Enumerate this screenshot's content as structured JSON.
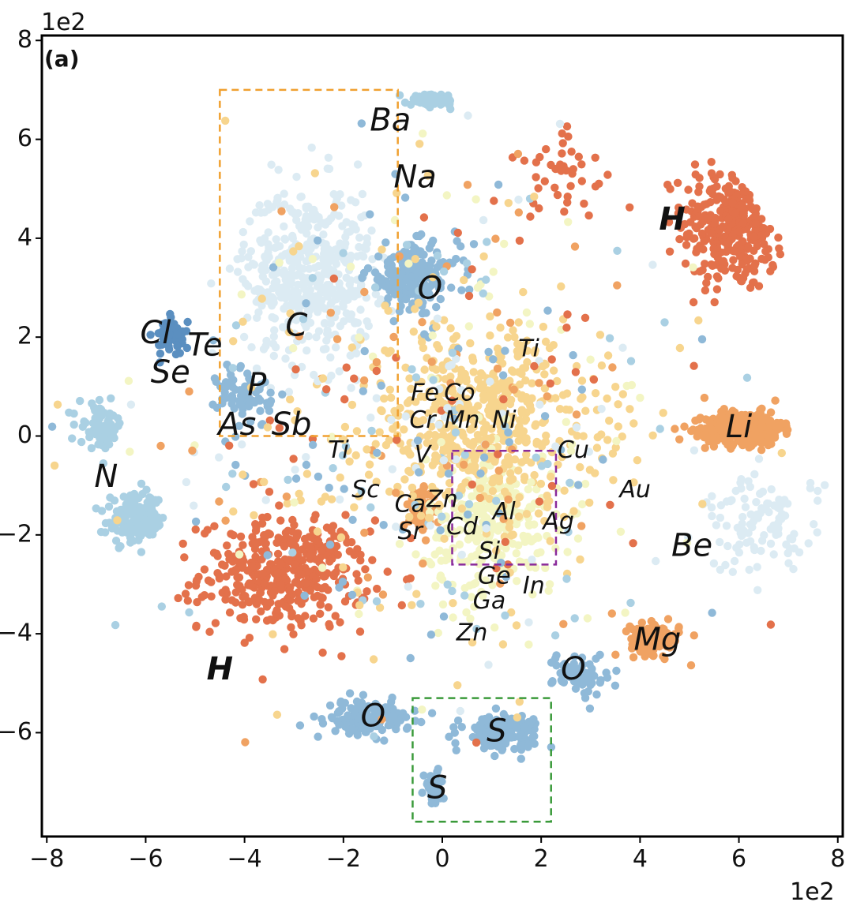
{
  "chart_data": {
    "type": "scatter",
    "panel_label": "(a)",
    "x_multiplier_label": "1e2",
    "y_multiplier_label": "1e2",
    "xlim": [
      -8.1,
      8.1
    ],
    "ylim": [
      -8.1,
      8.1
    ],
    "xticks": [
      -8,
      -6,
      -4,
      -2,
      0,
      2,
      4,
      6,
      8
    ],
    "yticks": [
      -6,
      -4,
      -2,
      0,
      2,
      4,
      6,
      8
    ],
    "tick_labels": {
      "x": [
        "−8",
        "−6",
        "−4",
        "−2",
        "0",
        "2",
        "4",
        "6",
        "8"
      ],
      "y": [
        "−6",
        "−4",
        "−2",
        "0",
        "2",
        "4",
        "6",
        "8"
      ]
    },
    "colors": {
      "dark_orange": "#e3714b",
      "orange": "#f0a262",
      "light_orange": "#f7d58e",
      "pale_yellow": "#f3f5c3",
      "pale_blue": "#dcebf3",
      "light_blue": "#aad0e3",
      "blue": "#8fb9d8",
      "dark_blue": "#5b8fc0",
      "box_orange": "#f0a030",
      "box_purple": "#8a2a9a",
      "box_green": "#3a9a3a"
    },
    "clusters": [
      {
        "cx": 5.9,
        "cy": 4.3,
        "sx": 0.95,
        "sy": 1.25,
        "n": 360,
        "color": "dark_orange"
      },
      {
        "cx": -3.2,
        "cy": -2.8,
        "sx": 1.55,
        "sy": 1.0,
        "n": 400,
        "color": "dark_orange"
      },
      {
        "cx": 6.1,
        "cy": 0.15,
        "sx": 0.7,
        "sy": 0.3,
        "n": 450,
        "color": "orange"
      },
      {
        "cx": 4.3,
        "cy": -4.1,
        "sx": 0.45,
        "sy": 0.28,
        "n": 120,
        "color": "orange"
      },
      {
        "cx": -0.4,
        "cy": -1.5,
        "sx": 0.25,
        "sy": 0.35,
        "n": 70,
        "color": "orange"
      },
      {
        "cx": -2.7,
        "cy": 3.3,
        "sx": 1.2,
        "sy": 1.6,
        "n": 480,
        "color": "pale_blue"
      },
      {
        "cx": 1.0,
        "cy": -1.8,
        "sx": 1.2,
        "sy": 1.3,
        "n": 260,
        "color": "pale_yellow"
      },
      {
        "cx": 0.8,
        "cy": 0.3,
        "sx": 2.2,
        "sy": 1.7,
        "n": 520,
        "color": "light_orange"
      },
      {
        "cx": -0.6,
        "cy": 3.2,
        "sx": 0.85,
        "sy": 0.6,
        "n": 190,
        "color": "blue"
      },
      {
        "cx": -0.2,
        "cy": 6.8,
        "sx": 0.4,
        "sy": 0.1,
        "n": 80,
        "color": "light_blue"
      },
      {
        "cx": -6.2,
        "cy": -1.7,
        "sx": 0.55,
        "sy": 0.45,
        "n": 140,
        "color": "light_blue"
      },
      {
        "cx": -6.9,
        "cy": 0.2,
        "sx": 0.4,
        "sy": 0.4,
        "n": 70,
        "color": "light_blue"
      },
      {
        "cx": -1.5,
        "cy": -5.7,
        "sx": 0.75,
        "sy": 0.3,
        "n": 140,
        "color": "blue"
      },
      {
        "cx": 1.2,
        "cy": -5.95,
        "sx": 0.7,
        "sy": 0.3,
        "n": 140,
        "color": "blue"
      },
      {
        "cx": -0.2,
        "cy": -7.1,
        "sx": 0.2,
        "sy": 0.35,
        "n": 40,
        "color": "blue"
      },
      {
        "cx": 2.8,
        "cy": -4.8,
        "sx": 0.5,
        "sy": 0.4,
        "n": 70,
        "color": "blue"
      },
      {
        "cx": -5.5,
        "cy": 2.0,
        "sx": 0.3,
        "sy": 0.35,
        "n": 50,
        "color": "dark_blue"
      },
      {
        "cx": -4.0,
        "cy": 0.8,
        "sx": 0.5,
        "sy": 0.6,
        "n": 70,
        "color": "blue"
      },
      {
        "cx": 6.5,
        "cy": -1.8,
        "sx": 1.1,
        "sy": 0.9,
        "n": 120,
        "color": "pale_blue"
      },
      {
        "cx": 2.5,
        "cy": 5.3,
        "sx": 1.0,
        "sy": 0.8,
        "n": 40,
        "color": "dark_orange"
      },
      {
        "cx": 0.0,
        "cy": 0.0,
        "sx": 4.6,
        "sy": 4.6,
        "n": 500,
        "color": "mixed"
      }
    ],
    "boxes": [
      {
        "name": "orange-box",
        "x0": -4.5,
        "x1": -0.9,
        "y0": 0.0,
        "y1": 7.0,
        "color": "box_orange"
      },
      {
        "name": "purple-box",
        "x0": 0.2,
        "x1": 2.3,
        "y0": -2.6,
        "y1": -0.3,
        "color": "box_purple"
      },
      {
        "name": "green-box",
        "x0": -0.6,
        "x1": 2.2,
        "y0": -7.8,
        "y1": -5.3,
        "color": "box_green"
      }
    ],
    "annotations": [
      {
        "text": "Ba",
        "x": -1.05,
        "y": 6.35,
        "size": 40,
        "bold": false
      },
      {
        "text": "Na",
        "x": -0.55,
        "y": 5.2,
        "size": 40,
        "bold": false
      },
      {
        "text": "H",
        "x": 4.65,
        "y": 4.35,
        "size": 40,
        "bold": true
      },
      {
        "text": "O",
        "x": -0.25,
        "y": 2.95,
        "size": 40,
        "bold": false
      },
      {
        "text": "Cl",
        "x": -5.8,
        "y": 2.05,
        "size": 40,
        "bold": false
      },
      {
        "text": "Te",
        "x": -4.8,
        "y": 1.8,
        "size": 40,
        "bold": false
      },
      {
        "text": "C",
        "x": -2.95,
        "y": 2.2,
        "size": 40,
        "bold": false
      },
      {
        "text": "Ti",
        "x": 1.75,
        "y": 1.75,
        "size": 30,
        "bold": false
      },
      {
        "text": "Se",
        "x": -5.5,
        "y": 1.25,
        "size": 40,
        "bold": false
      },
      {
        "text": "P",
        "x": -3.75,
        "y": 1.0,
        "size": 40,
        "bold": false
      },
      {
        "text": "Fe",
        "x": -0.35,
        "y": 0.85,
        "size": 30,
        "bold": false
      },
      {
        "text": "Co",
        "x": 0.35,
        "y": 0.85,
        "size": 30,
        "bold": false
      },
      {
        "text": "Cr",
        "x": -0.4,
        "y": 0.3,
        "size": 30,
        "bold": false
      },
      {
        "text": "Mn",
        "x": 0.4,
        "y": 0.3,
        "size": 30,
        "bold": false
      },
      {
        "text": "Ni",
        "x": 1.25,
        "y": 0.3,
        "size": 30,
        "bold": false
      },
      {
        "text": "Li",
        "x": 6.0,
        "y": 0.15,
        "size": 40,
        "bold": false
      },
      {
        "text": "As",
        "x": -4.15,
        "y": 0.2,
        "size": 40,
        "bold": false
      },
      {
        "text": "Sb",
        "x": -3.05,
        "y": 0.2,
        "size": 40,
        "bold": false
      },
      {
        "text": "Ti",
        "x": -2.1,
        "y": -0.3,
        "size": 30,
        "bold": false
      },
      {
        "text": "V",
        "x": -0.4,
        "y": -0.4,
        "size": 30,
        "bold": false
      },
      {
        "text": "Cu",
        "x": 2.65,
        "y": -0.3,
        "size": 30,
        "bold": false
      },
      {
        "text": "N",
        "x": -6.8,
        "y": -0.85,
        "size": 40,
        "bold": false
      },
      {
        "text": "Sc",
        "x": -1.55,
        "y": -1.1,
        "size": 30,
        "bold": false
      },
      {
        "text": "Au",
        "x": 3.9,
        "y": -1.1,
        "size": 30,
        "bold": false
      },
      {
        "text": "Ca",
        "x": -0.65,
        "y": -1.4,
        "size": 30,
        "bold": false
      },
      {
        "text": "Zn",
        "x": 0.0,
        "y": -1.3,
        "size": 30,
        "bold": false
      },
      {
        "text": "Al",
        "x": 1.25,
        "y": -1.55,
        "size": 30,
        "bold": false
      },
      {
        "text": "Ag",
        "x": 2.35,
        "y": -1.75,
        "size": 30,
        "bold": false
      },
      {
        "text": "Cd",
        "x": 0.4,
        "y": -1.85,
        "size": 30,
        "bold": false
      },
      {
        "text": "Sr",
        "x": -0.65,
        "y": -1.95,
        "size": 30,
        "bold": false
      },
      {
        "text": "Be",
        "x": 5.05,
        "y": -2.25,
        "size": 40,
        "bold": false
      },
      {
        "text": "Si",
        "x": 0.95,
        "y": -2.35,
        "size": 30,
        "bold": false
      },
      {
        "text": "Ge",
        "x": 1.05,
        "y": -2.85,
        "size": 30,
        "bold": false
      },
      {
        "text": "In",
        "x": 1.85,
        "y": -3.05,
        "size": 30,
        "bold": false
      },
      {
        "text": "Ga",
        "x": 0.95,
        "y": -3.35,
        "size": 30,
        "bold": false
      },
      {
        "text": "Mg",
        "x": 4.35,
        "y": -4.15,
        "size": 40,
        "bold": false
      },
      {
        "text": "Zn",
        "x": 0.6,
        "y": -4.0,
        "size": 30,
        "bold": false
      },
      {
        "text": "H",
        "x": -4.5,
        "y": -4.75,
        "size": 40,
        "bold": true
      },
      {
        "text": "O",
        "x": 2.65,
        "y": -4.75,
        "size": 40,
        "bold": false
      },
      {
        "text": "O",
        "x": -1.4,
        "y": -5.7,
        "size": 40,
        "bold": false
      },
      {
        "text": "S",
        "x": 1.1,
        "y": -6.0,
        "size": 40,
        "bold": false
      },
      {
        "text": "S",
        "x": -0.1,
        "y": -7.15,
        "size": 40,
        "bold": false
      }
    ]
  }
}
